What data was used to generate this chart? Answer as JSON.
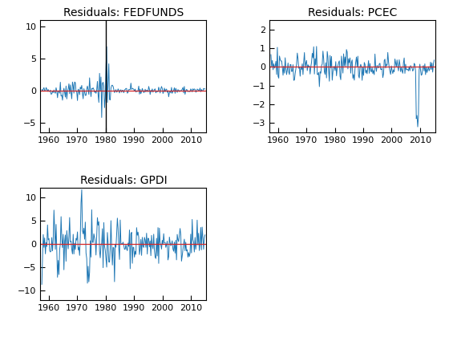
{
  "title1": "Residuals: FEDFUNDS",
  "title2": "Residuals: PCEC",
  "title3": "Residuals: GPDI",
  "line_color": "#1f77b4",
  "hline_color": "#d62728",
  "vline_color": "black",
  "fedfunds": {
    "ylim": [
      -6.5,
      11
    ],
    "yticks": [
      -5,
      0,
      5,
      10
    ],
    "vline_x": 1980
  },
  "pcec": {
    "ylim": [
      -3.5,
      2.5
    ],
    "yticks": [
      -3,
      -2,
      -1,
      0,
      1,
      2
    ]
  },
  "gpdi": {
    "ylim": [
      -12,
      12
    ],
    "yticks": [
      -10,
      -5,
      0,
      5,
      10
    ]
  },
  "xlim": [
    1957,
    2015.5
  ],
  "xticks": [
    1960,
    1970,
    1980,
    1990,
    2000,
    2010
  ],
  "tick_fontsize": 8,
  "title_fontsize": 10,
  "background_color": "#ffffff",
  "seed": 42,
  "n_points": 230
}
